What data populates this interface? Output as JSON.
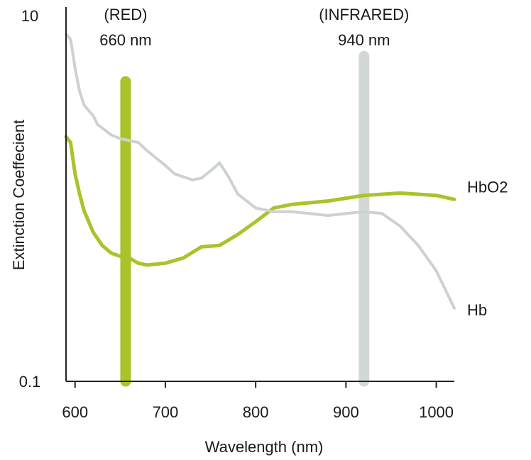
{
  "chart_data": {
    "type": "line",
    "xlabel": "Wavelength (nm)",
    "ylabel": "Extinction Coeffecient",
    "xlim": [
      590,
      1020
    ],
    "ylim": [
      0.1,
      10
    ],
    "y_scale": "log",
    "grid": false,
    "x_ticks": [
      600,
      700,
      800,
      900,
      1000
    ],
    "x_tick_labels": [
      "600",
      "700",
      "800",
      "900",
      "1000"
    ],
    "y_tick_labels": [
      {
        "value": 0.1,
        "label": "0.1"
      },
      {
        "value": 10,
        "label": "10"
      }
    ],
    "annotations": [
      {
        "label": "(RED)",
        "sublabel": "660 nm",
        "x": 656,
        "y_from": 0.1,
        "y_to": 4.3,
        "color": "#a8c42a"
      },
      {
        "label": "(INFRARED)",
        "sublabel": "940 nm",
        "x": 920,
        "y_from": 0.1,
        "y_to": 5.9,
        "color": "#d3d8d6"
      }
    ],
    "series": [
      {
        "name": "HbO2",
        "color": "#a8c42a",
        "x": [
          590,
          595,
          600,
          605,
          610,
          620,
          630,
          640,
          650,
          660,
          670,
          680,
          700,
          720,
          740,
          760,
          780,
          800,
          820,
          840,
          880,
          920,
          960,
          1000,
          1020
        ],
        "y": [
          2.15,
          2.0,
          1.35,
          1.05,
          0.85,
          0.65,
          0.55,
          0.5,
          0.48,
          0.47,
          0.44,
          0.43,
          0.44,
          0.47,
          0.54,
          0.55,
          0.63,
          0.74,
          0.88,
          0.92,
          0.96,
          1.03,
          1.06,
          1.03,
          0.98
        ]
      },
      {
        "name": "Hb",
        "color": "#ccd2d0",
        "x": [
          590,
          595,
          600,
          605,
          610,
          620,
          625,
          630,
          640,
          650,
          660,
          670,
          680,
          700,
          710,
          720,
          730,
          740,
          750,
          760,
          770,
          780,
          800,
          820,
          840,
          860,
          880,
          900,
          920,
          940,
          960,
          980,
          1000,
          1020
        ],
        "y": [
          7.8,
          7.3,
          5.1,
          3.8,
          3.2,
          2.8,
          2.5,
          2.4,
          2.2,
          2.1,
          2.05,
          2.0,
          1.8,
          1.5,
          1.35,
          1.3,
          1.25,
          1.28,
          1.4,
          1.55,
          1.3,
          1.05,
          0.88,
          0.84,
          0.84,
          0.82,
          0.8,
          0.82,
          0.84,
          0.82,
          0.7,
          0.55,
          0.4,
          0.25
        ]
      }
    ]
  }
}
